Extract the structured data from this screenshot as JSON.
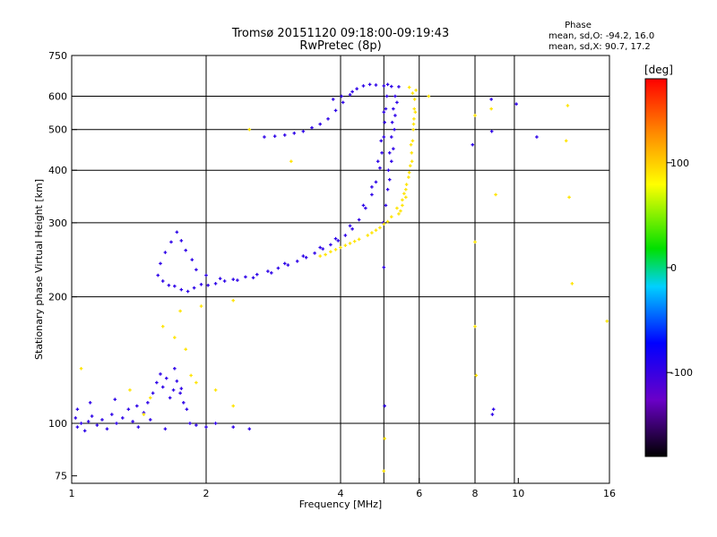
{
  "chart_data": {
    "type": "scatter",
    "title": "Tromsø 20151120 09:18:00-09:19:43",
    "subtitle": "RwPretec (8p)",
    "xlabel": "Frequency [MHz]",
    "ylabel": "Stationary phase Virtual Height [km]",
    "x_scale": "log",
    "y_scale": "log",
    "xlim": [
      1,
      16
    ],
    "ylim": [
      72,
      750
    ],
    "x_ticks": [
      1,
      2,
      4,
      6,
      8,
      10,
      16
    ],
    "y_ticks": [
      75,
      100,
      200,
      300,
      400,
      500,
      600,
      750
    ],
    "x_gridlines": [
      2,
      4,
      5,
      6,
      8,
      9.8
    ],
    "y_gridlines": [
      100,
      200,
      300,
      400,
      500,
      600
    ],
    "grid": true,
    "stats": {
      "heading": "Phase",
      "o_line": "mean, sd,O: -94.2, 16.0",
      "x_line": "mean, sd,X:  90.7, 17.2"
    },
    "colorbar": {
      "label": "[deg]",
      "range": [
        -180,
        180
      ],
      "ticks": [
        100,
        0,
        -100
      ]
    },
    "series": [
      {
        "mode": "O",
        "phase_deg": -94.2,
        "points": [
          [
            1.02,
            103
          ],
          [
            1.03,
            98
          ],
          [
            1.05,
            100
          ],
          [
            1.07,
            96
          ],
          [
            1.09,
            101
          ],
          [
            1.11,
            104
          ],
          [
            1.14,
            99
          ],
          [
            1.17,
            102
          ],
          [
            1.2,
            97
          ],
          [
            1.23,
            105
          ],
          [
            1.26,
            100
          ],
          [
            1.3,
            103
          ],
          [
            1.34,
            108
          ],
          [
            1.37,
            101
          ],
          [
            1.41,
            98
          ],
          [
            1.45,
            106
          ],
          [
            1.48,
            112
          ],
          [
            1.52,
            118
          ],
          [
            1.55,
            125
          ],
          [
            1.58,
            131
          ],
          [
            1.6,
            122
          ],
          [
            1.63,
            128
          ],
          [
            1.66,
            115
          ],
          [
            1.69,
            120
          ],
          [
            1.72,
            126
          ],
          [
            1.75,
            118
          ],
          [
            1.78,
            112
          ],
          [
            1.81,
            108
          ],
          [
            1.84,
            100
          ],
          [
            1.9,
            99
          ],
          [
            2.0,
            98
          ],
          [
            2.1,
            100
          ],
          [
            2.3,
            98
          ],
          [
            2.5,
            97
          ],
          [
            1.03,
            108
          ],
          [
            1.1,
            112
          ],
          [
            1.25,
            114
          ],
          [
            1.4,
            110
          ],
          [
            1.5,
            102
          ],
          [
            1.62,
            97
          ],
          [
            1.7,
            135
          ],
          [
            1.76,
            121
          ],
          [
            1.56,
            225
          ],
          [
            1.6,
            218
          ],
          [
            1.65,
            213
          ],
          [
            1.7,
            212
          ],
          [
            1.76,
            208
          ],
          [
            1.82,
            206
          ],
          [
            1.88,
            210
          ],
          [
            1.95,
            214
          ],
          [
            2.02,
            213
          ],
          [
            2.1,
            215
          ],
          [
            2.2,
            218
          ],
          [
            2.3,
            220
          ],
          [
            2.45,
            223
          ],
          [
            2.6,
            226
          ],
          [
            2.75,
            230
          ],
          [
            2.9,
            234
          ],
          [
            3.05,
            238
          ],
          [
            3.2,
            243
          ],
          [
            3.35,
            248
          ],
          [
            3.5,
            254
          ],
          [
            3.65,
            260
          ],
          [
            3.8,
            266
          ],
          [
            3.95,
            272
          ],
          [
            4.1,
            280
          ],
          [
            4.25,
            290
          ],
          [
            4.4,
            305
          ],
          [
            4.55,
            325
          ],
          [
            4.7,
            350
          ],
          [
            4.8,
            375
          ],
          [
            4.9,
            405
          ],
          [
            4.95,
            440
          ],
          [
            5.0,
            480
          ],
          [
            5.02,
            520
          ],
          [
            5.05,
            560
          ],
          [
            5.08,
            600
          ],
          [
            5.1,
            640
          ],
          [
            1.58,
            240
          ],
          [
            1.62,
            255
          ],
          [
            1.67,
            270
          ],
          [
            1.72,
            285
          ],
          [
            1.76,
            272
          ],
          [
            1.8,
            258
          ],
          [
            1.86,
            245
          ],
          [
            1.9,
            232
          ],
          [
            2.0,
            225
          ],
          [
            2.15,
            221
          ],
          [
            2.35,
            219
          ],
          [
            2.55,
            222
          ],
          [
            2.8,
            228
          ],
          [
            3.0,
            240
          ],
          [
            3.3,
            250
          ],
          [
            3.6,
            262
          ],
          [
            3.9,
            275
          ],
          [
            4.2,
            295
          ],
          [
            4.5,
            330
          ],
          [
            4.7,
            365
          ],
          [
            4.85,
            420
          ],
          [
            4.93,
            470
          ],
          [
            5.0,
            550
          ],
          [
            2.7,
            480
          ],
          [
            2.85,
            482
          ],
          [
            3.0,
            485
          ],
          [
            3.15,
            490
          ],
          [
            3.3,
            495
          ],
          [
            3.45,
            505
          ],
          [
            3.6,
            515
          ],
          [
            3.75,
            530
          ],
          [
            3.9,
            555
          ],
          [
            4.05,
            580
          ],
          [
            4.2,
            605
          ],
          [
            4.35,
            625
          ],
          [
            4.5,
            635
          ],
          [
            4.65,
            640
          ],
          [
            4.8,
            638
          ],
          [
            5.0,
            635
          ],
          [
            5.2,
            633
          ],
          [
            5.4,
            632
          ],
          [
            5.3,
            600
          ],
          [
            5.25,
            560
          ],
          [
            5.22,
            520
          ],
          [
            5.2,
            480
          ],
          [
            5.15,
            440
          ],
          [
            5.12,
            400
          ],
          [
            5.1,
            360
          ],
          [
            5.05,
            330
          ],
          [
            4.98,
            300
          ],
          [
            5.35,
            580
          ],
          [
            5.3,
            540
          ],
          [
            5.28,
            500
          ],
          [
            5.25,
            450
          ],
          [
            5.2,
            420
          ],
          [
            5.15,
            380
          ],
          [
            4.02,
            600
          ],
          [
            4.25,
            615
          ],
          [
            3.85,
            590
          ],
          [
            8.7,
            590
          ],
          [
            8.72,
            495
          ],
          [
            8.75,
            105
          ],
          [
            8.8,
            108
          ],
          [
            5.02,
            110
          ],
          [
            5.0,
            235
          ],
          [
            9.9,
            575
          ],
          [
            11.0,
            480
          ],
          [
            7.9,
            460
          ]
        ]
      },
      {
        "mode": "X",
        "phase_deg": 90.7,
        "points": [
          [
            3.6,
            250
          ],
          [
            3.8,
            256
          ],
          [
            4.0,
            262
          ],
          [
            4.2,
            268
          ],
          [
            4.4,
            274
          ],
          [
            4.6,
            280
          ],
          [
            4.8,
            288
          ],
          [
            5.0,
            298
          ],
          [
            5.2,
            310
          ],
          [
            5.35,
            325
          ],
          [
            5.5,
            340
          ],
          [
            5.6,
            360
          ],
          [
            5.68,
            385
          ],
          [
            5.73,
            410
          ],
          [
            5.77,
            440
          ],
          [
            5.8,
            470
          ],
          [
            5.82,
            500
          ],
          [
            5.84,
            530
          ],
          [
            5.85,
            560
          ],
          [
            5.86,
            590
          ],
          [
            5.9,
            620
          ],
          [
            5.7,
            630
          ],
          [
            5.8,
            610
          ],
          [
            5.6,
            345
          ],
          [
            5.5,
            330
          ],
          [
            5.45,
            320
          ],
          [
            5.75,
            460
          ],
          [
            5.78,
            420
          ],
          [
            5.7,
            395
          ],
          [
            5.62,
            370
          ],
          [
            5.88,
            550
          ],
          [
            5.83,
            515
          ],
          [
            5.55,
            352
          ],
          [
            5.4,
            315
          ],
          [
            5.1,
            302
          ],
          [
            4.9,
            292
          ],
          [
            4.7,
            284
          ],
          [
            4.3,
            271
          ],
          [
            4.1,
            265
          ],
          [
            3.9,
            259
          ],
          [
            3.7,
            252
          ],
          [
            1.6,
            170
          ],
          [
            1.7,
            160
          ],
          [
            1.75,
            185
          ],
          [
            1.8,
            150
          ],
          [
            1.85,
            130
          ],
          [
            1.9,
            125
          ],
          [
            2.1,
            120
          ],
          [
            2.3,
            110
          ],
          [
            1.35,
            120
          ],
          [
            1.05,
            135
          ],
          [
            1.5,
            115
          ],
          [
            1.45,
            105
          ],
          [
            1.95,
            190
          ],
          [
            2.3,
            196
          ],
          [
            2.5,
            500
          ],
          [
            3.1,
            420
          ],
          [
            8.0,
            540
          ],
          [
            8.7,
            560
          ],
          [
            8.0,
            270
          ],
          [
            8.0,
            170
          ],
          [
            8.05,
            130
          ],
          [
            8.9,
            350
          ],
          [
            12.8,
            470
          ],
          [
            13.0,
            345
          ],
          [
            13.2,
            215
          ],
          [
            15.8,
            175
          ],
          [
            5.02,
            92
          ],
          [
            5.0,
            77
          ],
          [
            6.3,
            600
          ],
          [
            12.9,
            570
          ]
        ]
      }
    ]
  }
}
